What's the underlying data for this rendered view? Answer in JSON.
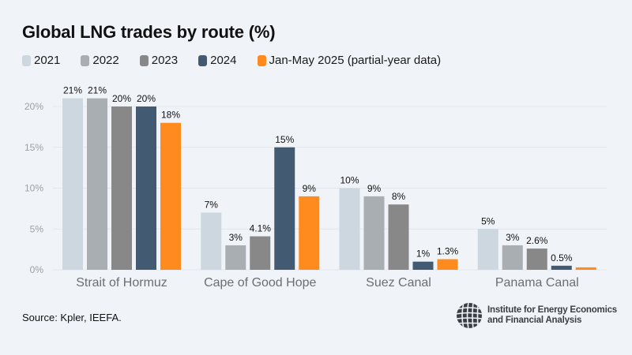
{
  "header": {
    "title": "Global LNG trades by route (%)"
  },
  "legend": [
    {
      "label": "2021",
      "color": "#cdd7e0"
    },
    {
      "label": "2022",
      "color": "#a8aeb2"
    },
    {
      "label": "2023",
      "color": "#888888"
    },
    {
      "label": "2024",
      "color": "#435a73"
    },
    {
      "label": "Jan-May 2025 (partial-year data)",
      "color": "#ff8a1e"
    }
  ],
  "footer": {
    "source": "Source: Kpler, IEEFA.",
    "logo_line1": "Institute for Energy Economics",
    "logo_line2": "and Financial Analysis"
  },
  "chart_data": {
    "type": "bar",
    "title": "Global LNG trades by route (%)",
    "xlabel": "",
    "ylabel": "",
    "ylim": [
      0,
      20
    ],
    "yticks": [
      0,
      5,
      10,
      15,
      20
    ],
    "ytick_labels": [
      "0%",
      "5%",
      "10%",
      "15%",
      "20%"
    ],
    "grid": true,
    "legend_position": "top-left",
    "categories": [
      "Strait of Hormuz",
      "Cape of Good Hope",
      "Suez Canal",
      "Panama Canal"
    ],
    "series": [
      {
        "name": "2021",
        "color": "#cdd7e0",
        "values": [
          21,
          7,
          10,
          5
        ],
        "labels": [
          "21%",
          "7%",
          "10%",
          "5%"
        ]
      },
      {
        "name": "2022",
        "color": "#a8aeb2",
        "values": [
          21,
          3,
          9,
          3
        ],
        "labels": [
          "21%",
          "3%",
          "9%",
          "3%"
        ]
      },
      {
        "name": "2023",
        "color": "#888888",
        "values": [
          20,
          4.1,
          8,
          2.6
        ],
        "labels": [
          "20%",
          "4.1%",
          "8%",
          "2.6%"
        ]
      },
      {
        "name": "2024",
        "color": "#435a73",
        "values": [
          20,
          15,
          1,
          0.5
        ],
        "labels": [
          "20%",
          "15%",
          "1%",
          "0.5%"
        ]
      },
      {
        "name": "Jan-May 2025 (partial-year data)",
        "color": "#ff8a1e",
        "values": [
          18,
          9,
          1.3,
          0.3
        ],
        "labels": [
          "18%",
          "9%",
          "1.3%",
          ""
        ]
      }
    ]
  }
}
